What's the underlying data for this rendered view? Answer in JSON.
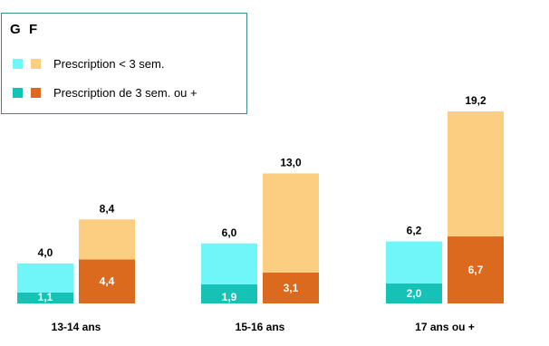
{
  "chart_data": {
    "type": "bar",
    "stacked": true,
    "categories": [
      "13-14 ans",
      "15-16 ans",
      "17 ans ou +"
    ],
    "groups": [
      {
        "name": "G",
        "short": [
          2.9,
          4.1,
          4.2
        ],
        "long": [
          1.1,
          1.9,
          2.0
        ],
        "total": [
          4.0,
          6.0,
          6.2
        ]
      },
      {
        "name": "F",
        "short": [
          4.0,
          9.9,
          12.5
        ],
        "long": [
          4.4,
          3.1,
          6.7
        ],
        "total": [
          8.4,
          13.0,
          19.2
        ]
      }
    ],
    "data_labels": {
      "G": {
        "total": [
          "4,0",
          "6,0",
          "6,2"
        ],
        "long": [
          "1,1",
          "1,9",
          "2,0"
        ]
      },
      "F": {
        "total": [
          "8,4",
          "13,0",
          "19,2"
        ],
        "long": [
          "4,4",
          "3,1",
          "6,7"
        ]
      }
    },
    "legend": {
      "groups": [
        "G",
        "F"
      ],
      "series": [
        "Prescription < 3 sem.",
        "Prescription de 3 sem. ou +"
      ]
    },
    "colors": {
      "G_short": "#6ef6f9",
      "G_long": "#14c2b6",
      "F_short": "#fcce82",
      "F_long": "#dc6a1e"
    },
    "ylim": [
      0,
      19.2
    ]
  }
}
